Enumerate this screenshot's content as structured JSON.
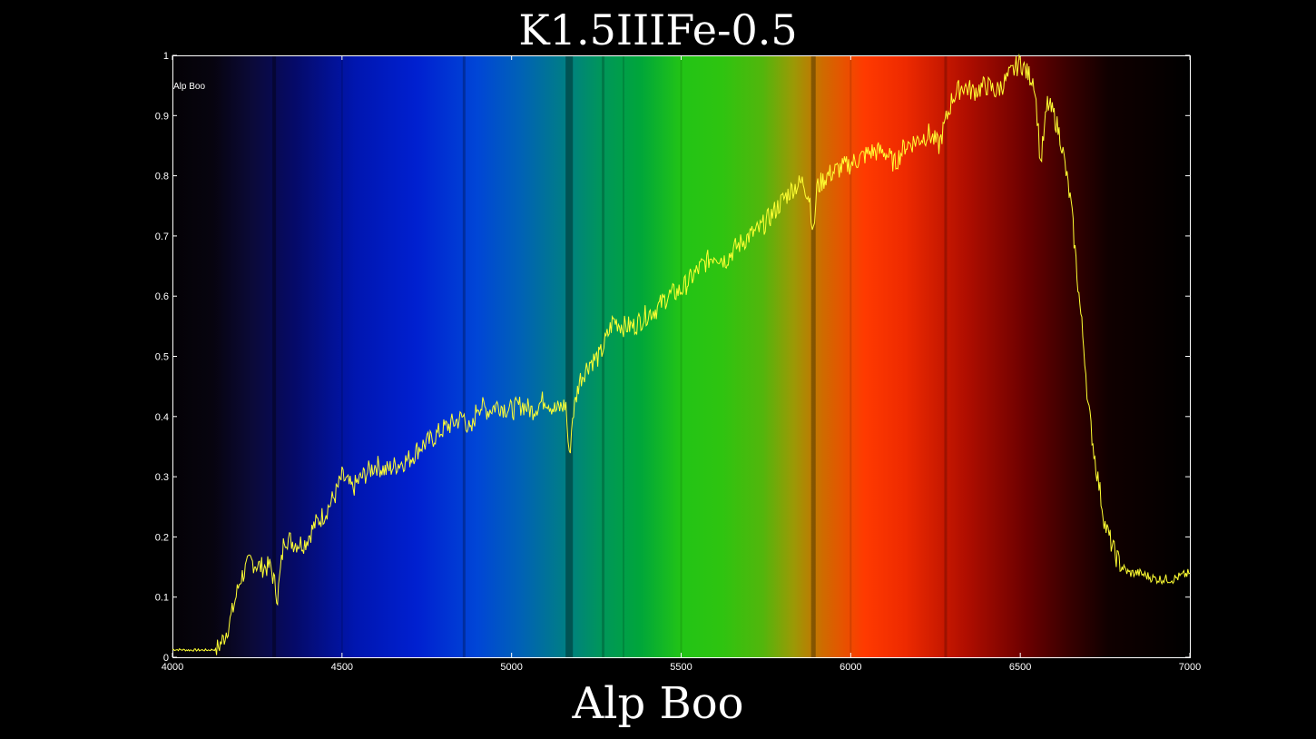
{
  "title": "K1.5IIIFe-0.5",
  "caption": "Alp Boo",
  "colors": {
    "background": "#000000",
    "frame": "#ffffff",
    "line": "#ffff33",
    "text": "#ffffff"
  },
  "chart_data": {
    "type": "line",
    "title": "K1.5IIIFe-0.5",
    "xlabel": "",
    "ylabel": "",
    "xlim": [
      4000,
      7000
    ],
    "ylim": [
      0,
      1
    ],
    "xticks": [
      4000,
      4500,
      5000,
      5500,
      6000,
      6500,
      7000
    ],
    "yticks": [
      0,
      0.1,
      0.2,
      0.3,
      0.4,
      0.5,
      0.6,
      0.7,
      0.8,
      0.9,
      1
    ],
    "grid": false,
    "background": "visible-spectrum color gradient (violet-blue-green-yellow-red)",
    "annotation": "Alp Boo",
    "series": [
      {
        "color": "#ffff33",
        "x": [
          4000,
          4050,
          4100,
          4130,
          4150,
          4170,
          4200,
          4230,
          4260,
          4290,
          4310,
          4330,
          4360,
          4390,
          4420,
          4450,
          4480,
          4500,
          4530,
          4560,
          4600,
          4630,
          4660,
          4700,
          4730,
          4760,
          4800,
          4830,
          4860,
          4880,
          4900,
          4930,
          4960,
          5000,
          5030,
          5060,
          5100,
          5130,
          5160,
          5170,
          5180,
          5200,
          5230,
          5260,
          5300,
          5330,
          5360,
          5400,
          5430,
          5460,
          5500,
          5530,
          5560,
          5600,
          5630,
          5660,
          5700,
          5730,
          5760,
          5800,
          5830,
          5860,
          5880,
          5890,
          5900,
          5930,
          5960,
          6000,
          6030,
          6060,
          6100,
          6130,
          6160,
          6200,
          6230,
          6260,
          6300,
          6330,
          6360,
          6400,
          6430,
          6460,
          6500,
          6520,
          6540,
          6550,
          6560,
          6580,
          6600,
          6620,
          6650,
          6670,
          6690,
          6700,
          6720,
          6750,
          6780,
          6800,
          6820,
          6850,
          6900,
          6950,
          7000
        ],
        "y": [
          0.013,
          0.012,
          0.012,
          0.013,
          0.03,
          0.06,
          0.13,
          0.16,
          0.15,
          0.15,
          0.1,
          0.2,
          0.19,
          0.19,
          0.22,
          0.24,
          0.27,
          0.3,
          0.28,
          0.3,
          0.32,
          0.31,
          0.32,
          0.33,
          0.35,
          0.36,
          0.38,
          0.39,
          0.4,
          0.37,
          0.42,
          0.41,
          0.42,
          0.41,
          0.42,
          0.41,
          0.43,
          0.41,
          0.42,
          0.33,
          0.4,
          0.46,
          0.49,
          0.5,
          0.56,
          0.55,
          0.55,
          0.57,
          0.58,
          0.6,
          0.61,
          0.63,
          0.65,
          0.67,
          0.66,
          0.68,
          0.7,
          0.71,
          0.73,
          0.76,
          0.78,
          0.79,
          0.76,
          0.7,
          0.78,
          0.8,
          0.81,
          0.82,
          0.83,
          0.84,
          0.84,
          0.82,
          0.85,
          0.86,
          0.87,
          0.85,
          0.93,
          0.95,
          0.94,
          0.95,
          0.94,
          0.96,
          0.99,
          0.97,
          0.96,
          0.9,
          0.82,
          0.92,
          0.9,
          0.86,
          0.75,
          0.62,
          0.5,
          0.42,
          0.33,
          0.22,
          0.17,
          0.15,
          0.14,
          0.14,
          0.13,
          0.13,
          0.14
        ]
      }
    ]
  }
}
